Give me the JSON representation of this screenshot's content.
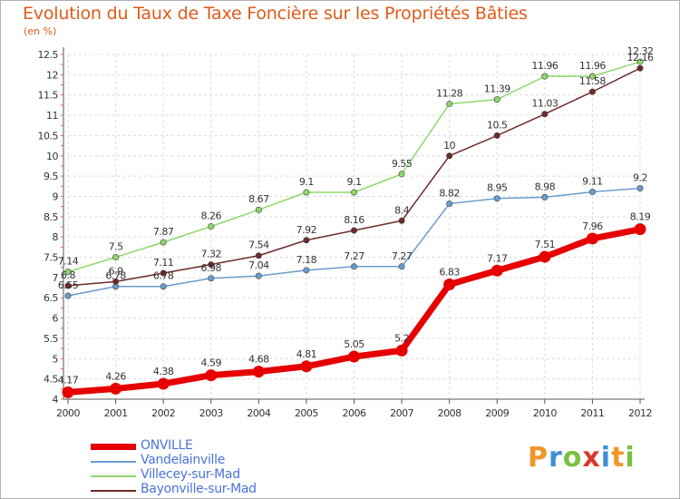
{
  "header": {
    "title": "Evolution du Taux de Taxe Foncière sur les Propriétés Bâties",
    "unit": "(en %)"
  },
  "logo": {
    "text": "Proxiti",
    "colors": [
      "#f0962a",
      "#3f8fd6",
      "#79c142",
      "#d93a2b",
      "#3f8fd6",
      "#f0962a",
      "#79c142"
    ]
  },
  "chart_data": {
    "type": "line",
    "x": [
      "2000",
      "2001",
      "2002",
      "2003",
      "2004",
      "2005",
      "2006",
      "2007",
      "2008",
      "2009",
      "2010",
      "2011",
      "2012"
    ],
    "ylim": [
      4,
      12.5
    ],
    "yticks": [
      "4",
      "4.5",
      "5",
      "5.5",
      "6",
      "6.5",
      "7",
      "7.5",
      "8",
      "8.5",
      "9",
      "9.5",
      "10",
      "10.5",
      "11",
      "11.5",
      "12",
      "12.5"
    ],
    "grid": true,
    "legend_position": "bottom-left",
    "series": [
      {
        "name": "ONVILLE",
        "color": "#e60000",
        "values": [
          4.17,
          4.26,
          4.38,
          4.59,
          4.68,
          4.81,
          5.05,
          5.2,
          6.83,
          7.17,
          7.51,
          7.96,
          8.19
        ],
        "labels": [
          "4.17",
          "4.26",
          "4.38",
          "4.59",
          "4.68",
          "4.81",
          "5.05",
          "5.2",
          "6.83",
          "7.17",
          "7.51",
          "7.96",
          "8.19"
        ]
      },
      {
        "name": "Vandelainville",
        "color": "#6b9ccc",
        "values": [
          6.55,
          6.78,
          6.78,
          6.98,
          7.04,
          7.18,
          7.27,
          7.27,
          8.82,
          8.95,
          8.98,
          9.11,
          9.2
        ],
        "labels": [
          "6.55",
          "6.78",
          "6.78",
          "6.98",
          "7.04",
          "7.18",
          "7.27",
          "7.27",
          "8.82",
          "8.95",
          "8.98",
          "9.11",
          "9.2"
        ]
      },
      {
        "name": "Villecey-sur-Mad",
        "color": "#8fd76a",
        "values": [
          7.14,
          7.5,
          7.87,
          8.26,
          8.67,
          9.1,
          9.1,
          9.55,
          11.28,
          11.39,
          11.96,
          11.96,
          12.32
        ],
        "labels": [
          "7.14",
          "7.5",
          "7.87",
          "8.26",
          "8.67",
          "9.1",
          "9.1",
          "9.55",
          "11.28",
          "11.39",
          "11.96",
          "11.96",
          "12.32"
        ]
      },
      {
        "name": "Bayonville-sur-Mad",
        "color": "#6e2a2a",
        "values": [
          6.8,
          6.9,
          7.11,
          7.32,
          7.54,
          7.92,
          8.16,
          8.4,
          10,
          10.5,
          11.03,
          11.58,
          12.16
        ],
        "labels": [
          "6.8",
          "6.9",
          "7.11",
          "7.32",
          "7.54",
          "7.92",
          "8.16",
          "8.4",
          "10",
          "10.5",
          "11.03",
          "11.58",
          "12.16"
        ]
      }
    ]
  }
}
